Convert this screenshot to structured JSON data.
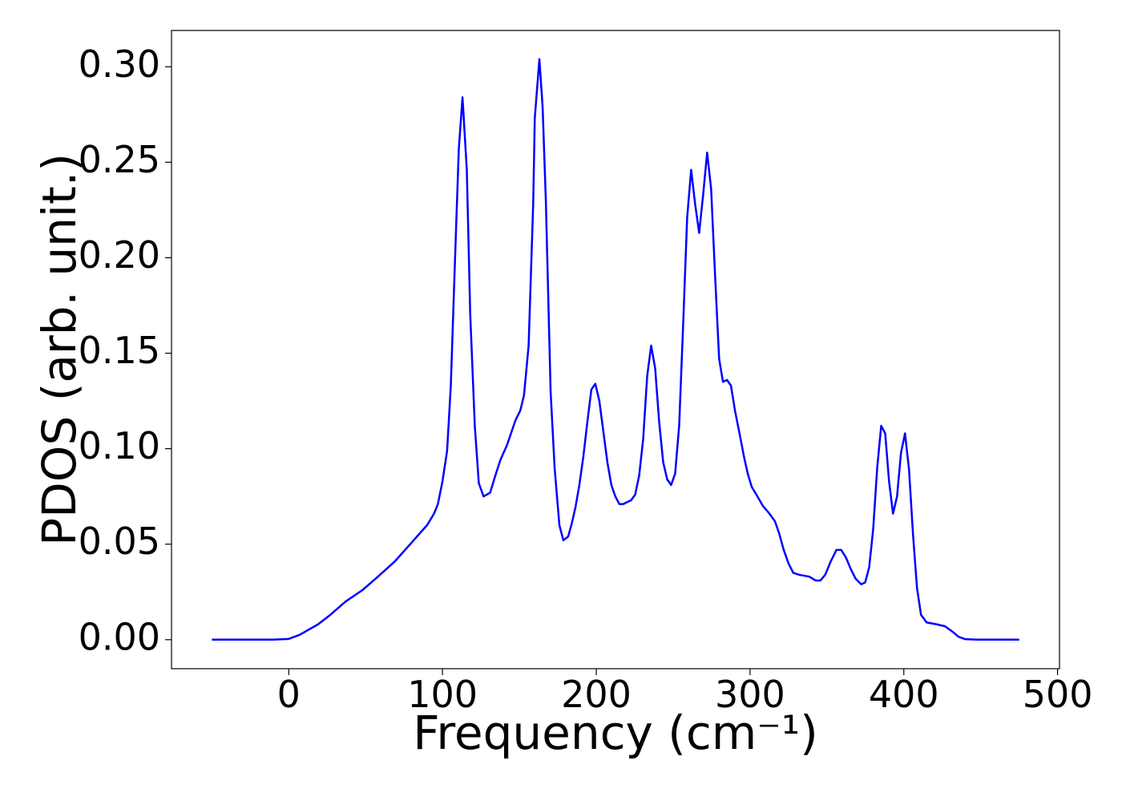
{
  "chart_data": {
    "type": "line",
    "xlabel": "Frequency (cm⁻¹)",
    "ylabel": "PDOS (arb. unit.)",
    "xlim": [
      -76.25,
      501.25
    ],
    "ylim": [
      -0.0152,
      0.319
    ],
    "xticks": [
      0,
      100,
      200,
      300,
      400,
      500
    ],
    "yticks": [
      {
        "value": 0,
        "label": "0.00"
      },
      {
        "value": 0.05,
        "label": "0.05"
      },
      {
        "value": 0.1,
        "label": "0.10"
      },
      {
        "value": 0.15,
        "label": "0.15"
      },
      {
        "value": 0.2,
        "label": "0.20"
      },
      {
        "value": 0.25,
        "label": "0.25"
      },
      {
        "value": 0.3,
        "label": "0.30"
      }
    ],
    "x": [
      -50,
      -10,
      0,
      7,
      19,
      27,
      37,
      48,
      58,
      69,
      79,
      90,
      94.5,
      97,
      100,
      103,
      105.4,
      108,
      110.6,
      113,
      115.8,
      118,
      121,
      123.6,
      126.7,
      131,
      134,
      137.6,
      142,
      147.5,
      150.6,
      153,
      156,
      159,
      160,
      163,
      165.1,
      167.2,
      170.3,
      172.9,
      176.0,
      178.6,
      181.7,
      183.8,
      186.4,
      189.0,
      191.6,
      194.2,
      196.8,
      199.4,
      202.0,
      204.6,
      207.2,
      209.8,
      212.4,
      215.0,
      217.5,
      220.1,
      222.7,
      225.3,
      227.9,
      230.5,
      233.1,
      235.7,
      238.3,
      240.9,
      243.5,
      246.1,
      248.7,
      251.3,
      253.9,
      256.5,
      259.1,
      261.7,
      264.3,
      266.9,
      269.5,
      272.1,
      274.7,
      277.3,
      279.9,
      282.4,
      285.0,
      287.6,
      290.2,
      293.4,
      296.0,
      298.5,
      301.1,
      304.8,
      308.4,
      312.6,
      316.2,
      318.8,
      321.9,
      325.0,
      328.1,
      331.8,
      338.5,
      342.7,
      345.8,
      348.9,
      352.5,
      356.2,
      359.3,
      362.4,
      365.5,
      368.6,
      372.3,
      374.9,
      377.5,
      380.1,
      382.7,
      385.3,
      387.9,
      390.4,
      393.0,
      395.6,
      398.2,
      400.8,
      403.4,
      406.0,
      408.6,
      411.2,
      414.9,
      421.6,
      426.8,
      432.0,
      435.6,
      439.8,
      447.6,
      475
    ],
    "series": [
      {
        "color": "#0000ff",
        "values": [
          0,
          0,
          0.0004,
          0.0025,
          0.008,
          0.013,
          0.02,
          0.026,
          0.033,
          0.041,
          0.05,
          0.06,
          0.066,
          0.071,
          0.083,
          0.099,
          0.133,
          0.196,
          0.257,
          0.284,
          0.246,
          0.171,
          0.112,
          0.082,
          0.075,
          0.077,
          0.085,
          0.094,
          0.102,
          0.115,
          0.12,
          0.128,
          0.154,
          0.229,
          0.273,
          0.304,
          0.279,
          0.23,
          0.13,
          0.09,
          0.06,
          0.052,
          0.054,
          0.06,
          0.069,
          0.081,
          0.096,
          0.114,
          0.131,
          0.134,
          0.125,
          0.109,
          0.093,
          0.081,
          0.075,
          0.071,
          0.071,
          0.072,
          0.073,
          0.076,
          0.086,
          0.105,
          0.138,
          0.154,
          0.142,
          0.114,
          0.093,
          0.084,
          0.081,
          0.087,
          0.112,
          0.165,
          0.221,
          0.246,
          0.228,
          0.213,
          0.233,
          0.255,
          0.236,
          0.19,
          0.147,
          0.135,
          0.136,
          0.133,
          0.12,
          0.107,
          0.096,
          0.087,
          0.08,
          0.075,
          0.07,
          0.066,
          0.062,
          0.056,
          0.047,
          0.04,
          0.035,
          0.034,
          0.033,
          0.031,
          0.031,
          0.034,
          0.041,
          0.047,
          0.047,
          0.043,
          0.037,
          0.032,
          0.029,
          0.03,
          0.038,
          0.058,
          0.09,
          0.112,
          0.108,
          0.083,
          0.066,
          0.075,
          0.098,
          0.108,
          0.089,
          0.055,
          0.027,
          0.013,
          0.009,
          0.008,
          0.007,
          0.004,
          0.0015,
          0.0003,
          0,
          0
        ]
      }
    ]
  }
}
